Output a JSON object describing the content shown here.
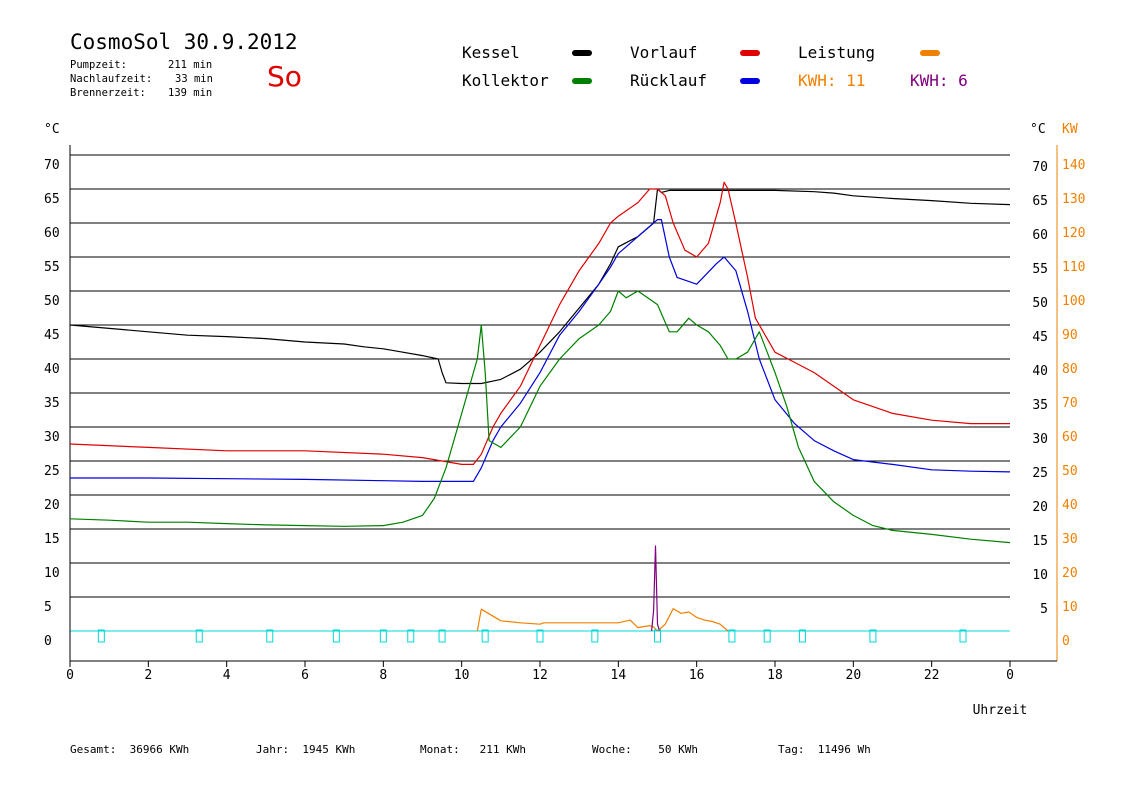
{
  "header": {
    "title": "CosmoSol 30.9.2012",
    "day": "So",
    "pump_label": "Pumpzeit:",
    "pump_value": "211 min",
    "nachlauf_label": "Nachlaufzeit:",
    "nachlauf_value": "33 min",
    "brenner_label": "Brennerzeit:",
    "brenner_value": "139 min"
  },
  "legend": {
    "kessel": "Kessel",
    "kollektor": "Kollektor",
    "vorlauf": "Vorlauf",
    "ruecklauf": "Rücklauf",
    "leistung": "Leistung",
    "kwh1": "KWH: 11",
    "kwh2": "KWH: 6",
    "colors": {
      "kessel": "#000000",
      "kollektor": "#008000",
      "vorlauf": "#e00000",
      "ruecklauf": "#0000e0",
      "leistung": "#f08000",
      "kwh2": "#800080",
      "pump": "#00d8d8"
    }
  },
  "footer": {
    "gesamt": "Gesamt:  36966 KWh",
    "jahr": "Jahr:  1945 KWh",
    "monat": "Monat:   211 KWh",
    "woche": "Woche:    50 KWh",
    "tag": "Tag:  11496 Wh"
  },
  "chart_data": {
    "type": "line",
    "xlabel": "Uhrzeit",
    "ylabel_left": "°C",
    "ylabel_right_temp": "°C",
    "ylabel_right_power": "KW",
    "xlim": [
      0,
      24
    ],
    "ylim": [
      0,
      70
    ],
    "x_ticks": [
      "0",
      "2",
      "4",
      "6",
      "8",
      "10",
      "12",
      "14",
      "16",
      "18",
      "20",
      "22",
      "0"
    ],
    "y_ticks_left": [
      "70",
      "65",
      "60",
      "55",
      "50",
      "45",
      "40",
      "35",
      "30",
      "25",
      "20",
      "15",
      "10",
      "5",
      "0"
    ],
    "y_ticks_right_temp": [
      "70",
      "65",
      "60",
      "55",
      "50",
      "45",
      "40",
      "35",
      "30",
      "25",
      "20",
      "15",
      "10",
      "5"
    ],
    "y_ticks_right_power": [
      "140",
      "130",
      "120",
      "110",
      "100",
      "90",
      "80",
      "70",
      "60",
      "50",
      "40",
      "30",
      "20",
      "10",
      "0"
    ],
    "series": [
      {
        "name": "Kessel",
        "color": "#000000",
        "x": [
          0,
          1,
          2,
          3,
          4,
          5,
          6,
          7,
          7.5,
          8,
          8.5,
          9,
          9.4,
          9.5,
          9.6,
          10,
          10.5,
          11,
          11.5,
          12,
          12.5,
          13,
          13.5,
          13.8,
          14,
          14.5,
          14.9,
          15,
          15.1,
          15.3,
          16,
          17,
          18,
          19,
          19.5,
          20,
          21,
          22,
          23,
          24
        ],
        "y": [
          45,
          44.5,
          44,
          43.5,
          43.3,
          43,
          42.5,
          42.2,
          41.8,
          41.5,
          41,
          40.5,
          40,
          38,
          36.5,
          36.4,
          36.4,
          37,
          38.5,
          41,
          44,
          47.5,
          51,
          54,
          56.5,
          58,
          60,
          65,
          64.5,
          64.8,
          64.8,
          64.8,
          64.8,
          64.6,
          64.4,
          64,
          63.6,
          63.3,
          62.9,
          62.7
        ]
      },
      {
        "name": "Vorlauf",
        "color": "#e00000",
        "x": [
          0,
          2,
          4,
          6,
          8,
          9,
          9.5,
          10,
          10.3,
          10.5,
          10.8,
          11,
          11.5,
          12,
          12.5,
          13,
          13.5,
          13.8,
          14,
          14.5,
          14.8,
          15,
          15.2,
          15.4,
          15.7,
          16,
          16.3,
          16.6,
          16.7,
          16.8,
          17,
          17.3,
          17.5,
          18,
          18.5,
          19,
          19.5,
          20,
          21,
          22,
          23,
          24
        ],
        "y": [
          27.5,
          27,
          26.5,
          26.5,
          26,
          25.5,
          25,
          24.5,
          24.5,
          26,
          30,
          32,
          36,
          42,
          48,
          53,
          57,
          60,
          61,
          63,
          65,
          65,
          64,
          60,
          56,
          55,
          57,
          63,
          66,
          65,
          60,
          52,
          46,
          41,
          39.5,
          38,
          36,
          34,
          32,
          31,
          30.5,
          30.5
        ]
      },
      {
        "name": "Rücklauf",
        "color": "#0000e0",
        "x": [
          0,
          2,
          4,
          6,
          8,
          9,
          10,
          10.3,
          10.5,
          10.8,
          11,
          11.5,
          12,
          12.5,
          13,
          13.5,
          13.8,
          14,
          14.5,
          14.8,
          15,
          15.1,
          15.3,
          15.5,
          16,
          16.5,
          16.7,
          17,
          17.3,
          17.6,
          18,
          18.5,
          19,
          19.5,
          20,
          21,
          22,
          23,
          24
        ],
        "y": [
          22.5,
          22.5,
          22.4,
          22.3,
          22.1,
          22,
          22,
          22,
          24,
          28,
          30,
          33.5,
          38,
          43.5,
          47,
          51,
          53.5,
          55.5,
          58,
          59.5,
          60.5,
          60.5,
          55,
          52,
          51,
          54,
          55,
          53,
          47,
          40,
          34,
          30.5,
          28,
          26.5,
          25.2,
          24.5,
          23.7,
          23.5,
          23.4
        ]
      },
      {
        "name": "Kollektor",
        "color": "#008000",
        "x": [
          0,
          1,
          2,
          3,
          4,
          5,
          6,
          7,
          8,
          8.5,
          9,
          9.3,
          9.6,
          10,
          10.2,
          10.4,
          10.5,
          10.6,
          10.7,
          11,
          11.5,
          12,
          12.5,
          13,
          13.5,
          13.8,
          14,
          14.2,
          14.5,
          15,
          15.3,
          15.5,
          15.8,
          16,
          16.3,
          16.6,
          16.8,
          17,
          17.3,
          17.6,
          17.8,
          18,
          18.3,
          18.6,
          19,
          19.5,
          20,
          20.5,
          21,
          22,
          23,
          24
        ],
        "y": [
          16.5,
          16.3,
          16,
          16,
          15.8,
          15.6,
          15.5,
          15.4,
          15.5,
          16,
          17,
          19.5,
          24,
          32,
          36,
          40,
          45,
          38,
          28,
          27,
          30,
          36,
          40,
          43,
          45,
          47,
          50,
          49,
          50,
          48,
          44,
          44,
          46,
          45,
          44,
          42,
          40,
          40,
          41,
          44,
          41,
          38,
          33,
          27,
          22,
          19,
          17,
          15.5,
          14.8,
          14.2,
          13.5,
          13
        ]
      },
      {
        "name": "Leistung",
        "color": "#f08000",
        "x": [
          10.4,
          10.5,
          11,
          11.5,
          12,
          12.1,
          12.5,
          13,
          13.5,
          13.8,
          14,
          14.3,
          14.5,
          14.8,
          14.9,
          15,
          15.2,
          15.4,
          15.6,
          15.8,
          16,
          16.2,
          16.4,
          16.6,
          16.8
        ],
        "y": [
          0,
          3.2,
          1.5,
          1.2,
          1.0,
          1.2,
          1.2,
          1.2,
          1.2,
          1.2,
          1.2,
          1.6,
          0.5,
          0.8,
          0.6,
          0,
          1.0,
          3.3,
          2.6,
          2.8,
          2.0,
          1.6,
          1.4,
          1.0,
          0
        ]
      },
      {
        "name": "KWH: 6",
        "color": "#800080",
        "x": [
          14.85,
          14.9,
          14.95,
          15.0,
          15.05
        ],
        "y": [
          0,
          3,
          12.5,
          1,
          0
        ]
      }
    ]
  }
}
